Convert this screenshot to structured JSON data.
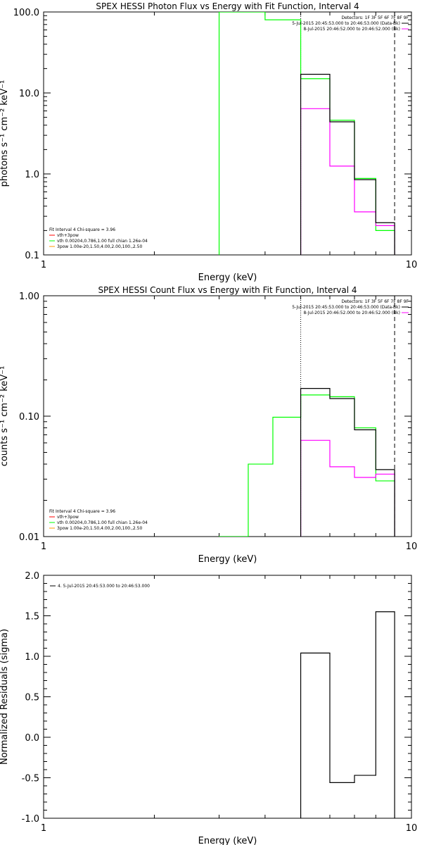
{
  "chart_data": [
    {
      "type": "line",
      "title": "SPEX HESSI Photon Flux vs Energy with Fit Function, Interval 4",
      "xlabel": "Energy (keV)",
      "ylabel": "photons s⁻¹ cm⁻² keV⁻¹",
      "xscale": "log",
      "yscale": "log",
      "xlim": [
        1,
        10
      ],
      "ylim": [
        0.1,
        100
      ],
      "xticks": [
        "1",
        "10"
      ],
      "yticks": [
        {
          "v": 0.1,
          "t": "0.1"
        },
        {
          "v": 1,
          "t": "1.0"
        },
        {
          "v": 10,
          "t": "10.0"
        },
        {
          "v": 100,
          "t": "100.0"
        }
      ],
      "vlines": [
        {
          "x": 5.0,
          "style": "dotted"
        },
        {
          "x": 9.0,
          "style": "dashed"
        }
      ],
      "legend_top": {
        "position": "top-right",
        "header": "Detectors: 1F 3F 5F 6F 7F 8F 9F",
        "items": [
          {
            "text": "5-Jul-2015 20:45:53.000 to 20:46:53.000 (Data-Bk)",
            "color": "#000000"
          },
          {
            "text": "8-Jul-2015 20:46:52.000 to 20:46:52.000 (Bk)",
            "color": "#ff00ff"
          }
        ]
      },
      "legend_bottom": {
        "position": "bottom-left",
        "header": "Fit Interval 4   Chi-square = 3.96",
        "items": [
          {
            "text": "vth+3pow",
            "color": "#ff0000"
          },
          {
            "text": "vth 0.00204,0.786,1.00   full chian 1.26e-04",
            "color": "#00ff00"
          },
          {
            "text": "3pow 1.00e-20,1.50,4.00,2.00,100.,2.50",
            "color": "#ff9900"
          }
        ]
      },
      "series": [
        {
          "color": "#00ff00",
          "edges": [
            3,
            4,
            5,
            6,
            7,
            8,
            9
          ],
          "values": [
            100,
            80,
            15,
            4.6,
            0.88,
            0.2
          ]
        },
        {
          "color": "#ff00ff",
          "edges": [
            5,
            6,
            7,
            8,
            9
          ],
          "values": [
            6.4,
            1.25,
            0.34,
            0.23
          ]
        },
        {
          "color": "#000000",
          "edges": [
            5,
            6,
            7,
            8,
            9
          ],
          "values": [
            17,
            4.4,
            0.85,
            0.25
          ]
        }
      ]
    },
    {
      "type": "line",
      "title": "SPEX HESSI Count Flux vs Energy with Fit Function, Interval 4",
      "xlabel": "Energy (keV)",
      "ylabel": "counts s⁻¹ cm⁻² keV⁻¹",
      "xscale": "log",
      "yscale": "log",
      "xlim": [
        1,
        10
      ],
      "ylim": [
        0.01,
        1
      ],
      "xticks": [
        "1",
        "10"
      ],
      "yticks": [
        {
          "v": 0.01,
          "t": "0.01"
        },
        {
          "v": 0.1,
          "t": "0.10"
        },
        {
          "v": 1,
          "t": "1.00"
        }
      ],
      "vlines": [
        {
          "x": 5.0,
          "style": "dotted"
        },
        {
          "x": 9.0,
          "style": "dashed"
        }
      ],
      "legend_top": {
        "position": "top-right",
        "header": "Detectors: 1F 3F 5F 6F 7F 8F 9F",
        "items": [
          {
            "text": "5-Jul-2015 20:45:53.000 to 20:46:53.000 (Data-Bk)",
            "color": "#000000"
          },
          {
            "text": "8-Jul-2015 20:46:52.000 to 20:46:52.000 (Bk)",
            "color": "#ff00ff"
          }
        ]
      },
      "legend_bottom": {
        "position": "bottom-left",
        "header": "Fit Interval 4   Chi-square = 3.96",
        "items": [
          {
            "text": "vth+3pow",
            "color": "#ff0000"
          },
          {
            "text": "vth 0.00204,0.786,1.00   full chian 1.26e-04",
            "color": "#00ff00"
          },
          {
            "text": "3pow 1.00e-20,1.50,4.00,2.00,100.,2.50",
            "color": "#ff9900"
          }
        ]
      },
      "series": [
        {
          "color": "#00ff00",
          "edges": [
            3,
            3.6,
            4.2,
            5,
            6,
            7,
            8,
            9
          ],
          "values": [
            0.01,
            0.04,
            0.098,
            0.15,
            0.145,
            0.08,
            0.029
          ]
        },
        {
          "color": "#ff00ff",
          "edges": [
            5,
            6,
            7,
            8,
            9
          ],
          "values": [
            0.063,
            0.038,
            0.031,
            0.033
          ]
        },
        {
          "color": "#000000",
          "edges": [
            5,
            6,
            7,
            8,
            9
          ],
          "values": [
            0.17,
            0.14,
            0.077,
            0.036
          ]
        }
      ]
    },
    {
      "type": "line",
      "title": "",
      "xlabel": "Energy (keV)",
      "ylabel": "Normalized Residuals (sigma)",
      "xscale": "log",
      "yscale": "linear",
      "xlim": [
        1,
        10
      ],
      "ylim": [
        -1.0,
        2.0
      ],
      "xticks": [
        "1",
        "10"
      ],
      "yticks": [
        {
          "v": -1.0,
          "t": "-1.0"
        },
        {
          "v": -0.5,
          "t": "-0.5"
        },
        {
          "v": 0.0,
          "t": "0.0"
        },
        {
          "v": 0.5,
          "t": "0.5"
        },
        {
          "v": 1.0,
          "t": "1.0"
        },
        {
          "v": 1.5,
          "t": "1.5"
        },
        {
          "v": 2.0,
          "t": "2.0"
        }
      ],
      "vlines": [],
      "legend_top": {
        "position": "top-left",
        "header": "",
        "items": [
          {
            "text": "4.  5-Jul-2015 20:45:53.000 to 20:46:53.000",
            "color": "#000000"
          }
        ]
      },
      "legend_bottom": {
        "position": "",
        "header": "",
        "items": []
      },
      "series": [
        {
          "color": "#000000",
          "edges": [
            5,
            6,
            7,
            8,
            9
          ],
          "values": [
            1.04,
            -0.56,
            -0.47,
            1.55
          ],
          "baseline": -1.0
        }
      ]
    }
  ]
}
